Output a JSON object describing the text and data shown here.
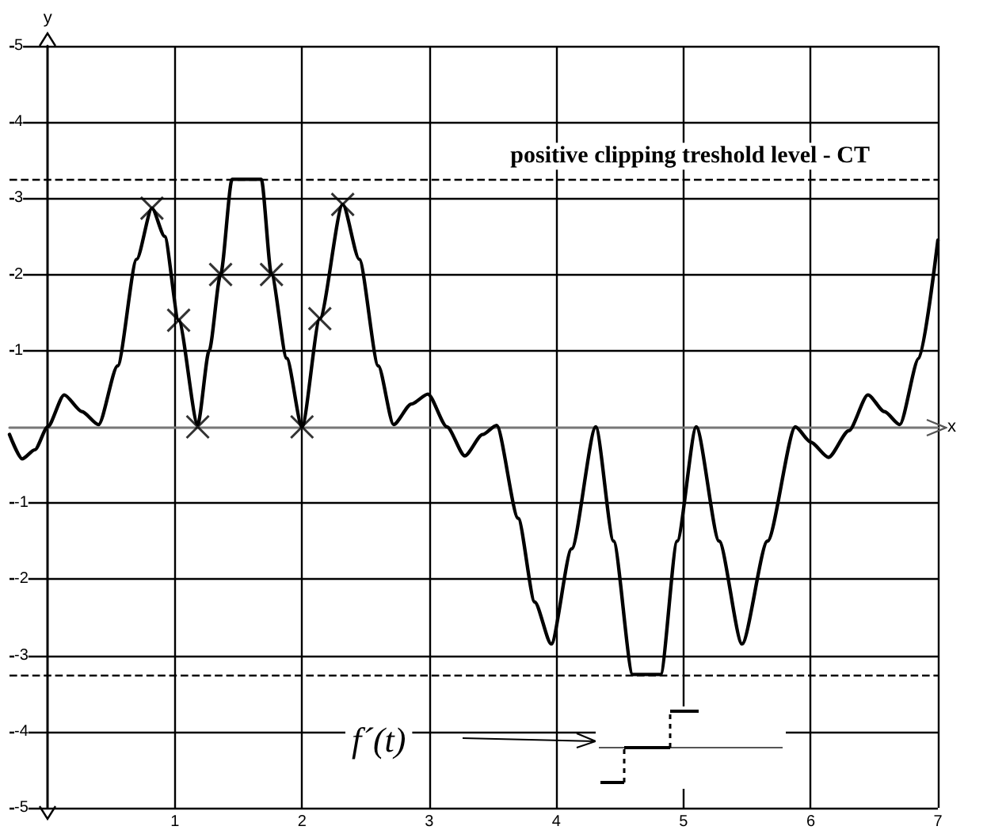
{
  "chart_data": {
    "type": "line",
    "xlabel": "x",
    "ylabel": "y",
    "xlim": [
      -0.3,
      7
    ],
    "ylim": [
      -5,
      5
    ],
    "xticks": [
      1,
      2,
      3,
      4,
      5,
      6,
      7
    ],
    "yticks": [
      -5,
      -4,
      -3,
      -2,
      -1,
      1,
      2,
      3,
      4,
      5
    ],
    "grid": true,
    "series": [
      {
        "color": "#000000",
        "marker": "none",
        "line_style": "solid",
        "x": [
          -0.3,
          -0.2,
          -0.1,
          0,
          0.13,
          0.27,
          0.4,
          0.55,
          0.7,
          0.82,
          0.92,
          1.03,
          1.18,
          1.27,
          1.36,
          1.45,
          1.68,
          1.76,
          1.88,
          2.0,
          2.14,
          2.32,
          2.45,
          2.6,
          2.72,
          2.86,
          2.99,
          3.14,
          3.28,
          3.42,
          3.53,
          3.7,
          3.83,
          3.96,
          4.12,
          4.31,
          4.45,
          4.6,
          4.82,
          4.95,
          5.1,
          5.28,
          5.46,
          5.66,
          5.88,
          6.0,
          6.14,
          6.3,
          6.45,
          6.58,
          6.7,
          6.85,
          7.0
        ],
        "values": [
          -0.1,
          -0.42,
          -0.3,
          0,
          0.42,
          0.2,
          0.03,
          0.8,
          2.2,
          2.87,
          2.5,
          1.4,
          0.03,
          1,
          2,
          3.25,
          3.25,
          2,
          0.9,
          0,
          1.42,
          2.92,
          2.2,
          0.8,
          0.03,
          0.3,
          0.43,
          0,
          -0.38,
          -0.1,
          0.02,
          -1.2,
          -2.3,
          -2.85,
          -1.6,
          0,
          -1.5,
          -3.25,
          -3.25,
          -1.5,
          0,
          -1.5,
          -2.85,
          -1.5,
          0,
          -0.2,
          -0.4,
          -0.05,
          0.42,
          0.2,
          0.03,
          0.9,
          2.45
        ]
      },
      {
        "type": "scatter",
        "color": "#000000",
        "marker": "cross",
        "x": [
          0.82,
          1.03,
          1.18,
          1.36,
          1.76,
          2.0,
          2.14,
          2.32
        ],
        "values": [
          2.87,
          1.4,
          0,
          2,
          2,
          0,
          1.42,
          2.92
        ]
      }
    ],
    "ref_lines": [
      {
        "axis": "y",
        "value": 3.25,
        "label": "positive clipping treshold level - CT",
        "line_style": "dashed",
        "color": "#000000"
      },
      {
        "axis": "y",
        "value": -3.25,
        "line_style": "dashed",
        "color": "#000000"
      }
    ],
    "annotations": [
      "f´(t)"
    ]
  }
}
